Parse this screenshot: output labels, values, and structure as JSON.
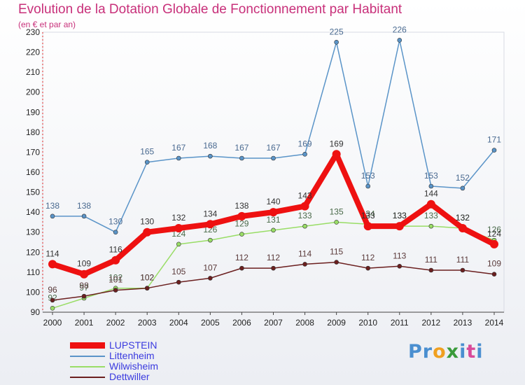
{
  "title": "Evolution de la Dotation Globale de Fonctionnement par Habitant",
  "subtitle": "(en € et par an)",
  "logo": {
    "p": "Pr",
    "o": "o",
    "x": "x",
    "i": "i",
    "t": "t",
    "last": "i"
  },
  "chart_data": {
    "type": "line",
    "x": [
      "2000",
      "2001",
      "2002",
      "2003",
      "2004",
      "2005",
      "2006",
      "2007",
      "2008",
      "2009",
      "2010",
      "2011",
      "2012",
      "2013",
      "2014"
    ],
    "ylim": [
      90,
      230
    ],
    "yticks": [
      90,
      100,
      110,
      120,
      130,
      140,
      150,
      160,
      170,
      180,
      190,
      200,
      210,
      220,
      230
    ],
    "grid": false,
    "legend_position": "bottom-left",
    "series": [
      {
        "name": "LUPSTEIN",
        "color": "#ee1111",
        "values": [
          114,
          109,
          116,
          130,
          132,
          134,
          138,
          140,
          143,
          169,
          133,
          133,
          144,
          132,
          124
        ]
      },
      {
        "name": "Littenheim",
        "color": "#5a94c8",
        "values": [
          138,
          138,
          130,
          165,
          167,
          168,
          167,
          167,
          169,
          225,
          153,
          226,
          153,
          152,
          171
        ]
      },
      {
        "name": "Wilwisheim",
        "color": "#99dd66",
        "values": [
          92,
          97,
          102,
          102,
          124,
          126,
          129,
          131,
          133,
          135,
          134,
          133,
          133,
          132,
          126
        ]
      },
      {
        "name": "Dettwiller",
        "color": "#6b1f1f",
        "values": [
          96,
          98,
          101,
          102,
          105,
          107,
          112,
          112,
          114,
          115,
          112,
          113,
          111,
          111,
          109
        ]
      }
    ]
  }
}
